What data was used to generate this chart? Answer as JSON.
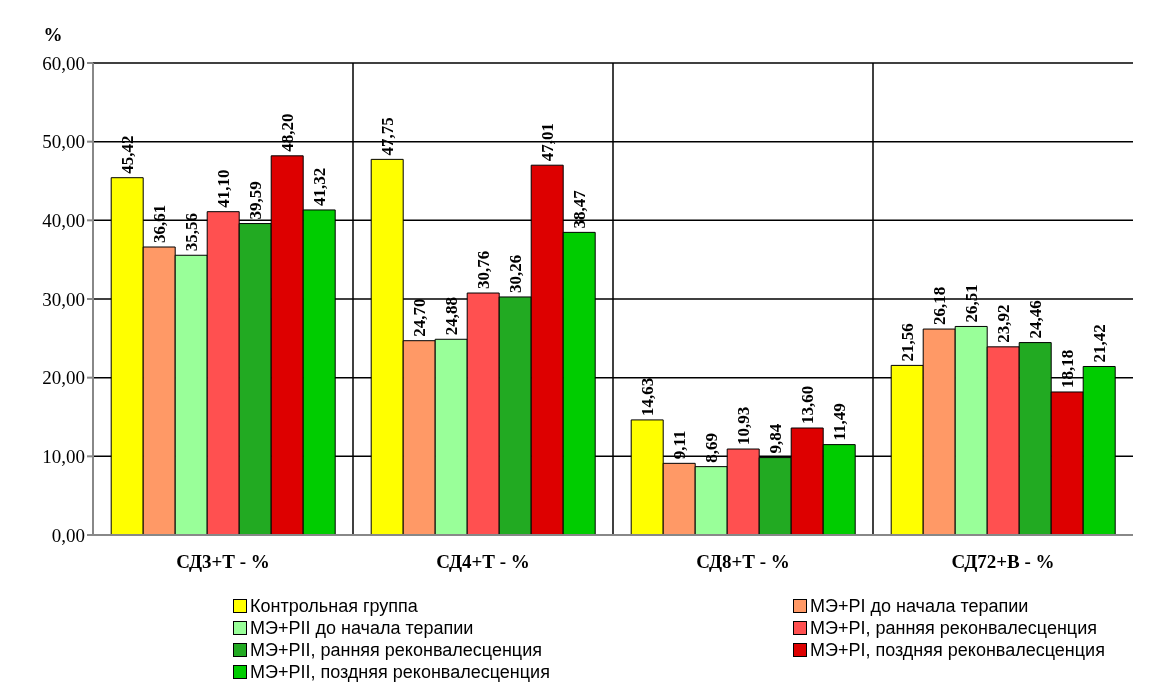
{
  "chart_data": {
    "type": "bar",
    "ylabel": "%",
    "categories": [
      "СД3+Т - %",
      "СД4+Т - %",
      "СД8+Т - %",
      "СД72+В - %"
    ],
    "series": [
      {
        "name": "Контрольная группа",
        "color": "#ffff00",
        "values": [
          45.42,
          47.75,
          14.63,
          21.56
        ],
        "value_labels": [
          "45,42",
          "47,75",
          "14,63",
          "21,56"
        ]
      },
      {
        "name": "МЭ+PI до начала  терапии",
        "color": "#ff9966",
        "values": [
          36.61,
          24.7,
          9.11,
          26.18
        ],
        "value_labels": [
          "36,61",
          "24,70",
          "9,11",
          "26,18"
        ]
      },
      {
        "name": "МЭ+PII до начала  терапии",
        "color": "#99ff99",
        "values": [
          35.56,
          24.88,
          8.69,
          26.51
        ],
        "value_labels": [
          "35,56",
          "24,88",
          "8,69",
          "26,51"
        ]
      },
      {
        "name": "МЭ+PI, ранняя реконвалесценция",
        "color": "#ff5050",
        "values": [
          41.1,
          30.76,
          10.93,
          23.92
        ],
        "value_labels": [
          "41,10",
          "30,76",
          "10,93",
          "23,92"
        ]
      },
      {
        "name": "МЭ+PII, ранняя реконвалесценция",
        "color": "#22aa22",
        "values": [
          39.59,
          30.26,
          9.84,
          24.46
        ],
        "value_labels": [
          "39,59",
          "30,26",
          "9,84",
          "24,46"
        ]
      },
      {
        "name": "МЭ+PI, поздняя реконвалесценция",
        "color": "#dd0000",
        "values": [
          48.2,
          47.01,
          13.6,
          18.18
        ],
        "value_labels": [
          "48,20",
          "47,01",
          "13,60",
          "18,18"
        ]
      },
      {
        "name": "МЭ+PII, поздняя реконвалесценция",
        "color": "#00cc00",
        "values": [
          41.32,
          38.47,
          11.49,
          21.42
        ],
        "value_labels": [
          "41,32",
          "38,47",
          "11,49",
          "21,42"
        ]
      }
    ],
    "ylim": [
      0,
      60
    ],
    "yticks": [
      {
        "value": 0,
        "label": "0,00"
      },
      {
        "value": 10,
        "label": "10,00"
      },
      {
        "value": 20,
        "label": "20,00"
      },
      {
        "value": 30,
        "label": "30,00"
      },
      {
        "value": 40,
        "label": "40,00"
      },
      {
        "value": 50,
        "label": "50,00"
      },
      {
        "value": 60,
        "label": "60,00"
      }
    ],
    "grid": true,
    "legend": "bottom"
  }
}
